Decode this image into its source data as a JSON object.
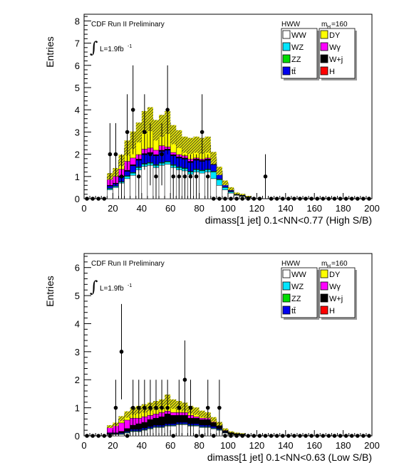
{
  "colors": {
    "WW": "#ffffff",
    "WZ": "#00e5ff",
    "ZZ": "#00dd00",
    "tt": "#0000ee",
    "DY": "#ffff00",
    "Wgamma": "#ff00ff",
    "Wjets": "#000000",
    "H": "#ff0000",
    "uncertainty": "#bbbb00"
  },
  "chart_data": [
    {
      "type": "bar",
      "panel": "top",
      "title": "CDF Run II Preliminary",
      "lumi_label": "L=1.9fb",
      "lumi_sup": "-1",
      "integral_symbol": "∫",
      "legend_title_left": "HWW",
      "legend_title_right": "m",
      "legend_title_right_sub": "H",
      "legend_title_right_value": "=160",
      "legend": [
        {
          "key": "WW",
          "label": "WW"
        },
        {
          "key": "DY",
          "label": "DY"
        },
        {
          "key": "WZ",
          "label": "WZ"
        },
        {
          "key": "Wgamma",
          "label": "Wγ"
        },
        {
          "key": "ZZ",
          "label": "ZZ"
        },
        {
          "key": "Wjets",
          "label": "W+j"
        },
        {
          "key": "tt",
          "label": "tt̄"
        },
        {
          "key": "H",
          "label": "H"
        }
      ],
      "xlabel": "dimass[1 jet] 0.1<NN<0.77 (High S/B)",
      "ylabel": "Entries",
      "xlim": [
        0,
        200
      ],
      "ylim": [
        0,
        8.3
      ],
      "x_ticks": [
        0,
        20,
        40,
        60,
        80,
        100,
        120,
        140,
        160,
        180,
        200
      ],
      "x_tick_labels": [
        "0",
        "20",
        "40",
        "60",
        "80",
        "100",
        "120",
        "140",
        "160",
        "180",
        "200"
      ],
      "y_ticks": [
        0,
        1,
        2,
        3,
        4,
        5,
        6,
        7,
        8
      ],
      "y_tick_labels": [
        "0",
        "1",
        "2",
        "3",
        "4",
        "5",
        "6",
        "7",
        "8"
      ],
      "bin_edges": [
        16,
        20,
        24,
        28,
        32,
        36,
        40,
        44,
        48,
        52,
        56,
        60,
        64,
        68,
        72,
        76,
        80,
        84,
        88,
        92,
        96,
        100,
        104,
        108,
        112,
        116
      ],
      "stack": [
        {
          "key": "WW",
          "values": [
            0.4,
            0.5,
            0.7,
            0.9,
            1.05,
            1.3,
            1.45,
            1.5,
            1.4,
            1.5,
            1.55,
            1.4,
            1.3,
            1.25,
            1.1,
            1.2,
            1.15,
            1.2,
            0.9,
            0.6,
            0.4,
            0.25,
            0.15,
            0.1,
            0.05
          ]
        },
        {
          "key": "WZ",
          "values": [
            0.05,
            0.05,
            0.05,
            0.1,
            0.1,
            0.1,
            0.1,
            0.1,
            0.1,
            0.1,
            0.1,
            0.1,
            0.1,
            0.1,
            0.1,
            0.1,
            0.1,
            0.1,
            0.3,
            0.25,
            0.1,
            0.05,
            0.02,
            0.02,
            0.01
          ]
        },
        {
          "key": "ZZ",
          "values": [
            0.02,
            0.02,
            0.02,
            0.03,
            0.03,
            0.03,
            0.03,
            0.03,
            0.03,
            0.03,
            0.03,
            0.03,
            0.03,
            0.03,
            0.03,
            0.03,
            0.03,
            0.03,
            0.03,
            0.03,
            0.02,
            0.02,
            0.01,
            0.01,
            0.01
          ]
        },
        {
          "key": "tt",
          "values": [
            0.1,
            0.1,
            0.2,
            0.2,
            0.3,
            0.3,
            0.4,
            0.4,
            0.4,
            0.5,
            0.5,
            0.4,
            0.4,
            0.4,
            0.4,
            0.4,
            0.4,
            0.4,
            0.3,
            0.2,
            0.1,
            0.05,
            0.02,
            0.02,
            0.01
          ]
        },
        {
          "key": "Wjets",
          "values": [
            0.03,
            0.03,
            0.05,
            0.05,
            0.05,
            0.05,
            0.05,
            0.05,
            0.05,
            0.05,
            0.05,
            0.05,
            0.05,
            0.05,
            0.05,
            0.05,
            0.05,
            0.05,
            0.05,
            0.05,
            0.02,
            0.02,
            0.01,
            0.01,
            0.01
          ]
        },
        {
          "key": "Wgamma",
          "values": [
            0.3,
            0.3,
            0.3,
            0.4,
            0.3,
            0.2,
            0.2,
            0.2,
            0.2,
            0.2,
            0.1,
            0.1,
            0.1,
            0.1,
            0.1,
            0.05,
            0.05,
            0.05,
            0.05,
            0.02,
            0.02,
            0.01,
            0.01,
            0.01,
            0.01
          ]
        },
        {
          "key": "DY",
          "values": [
            0.1,
            0.2,
            0.4,
            0.6,
            0.8,
            1.0,
            1.2,
            1.3,
            0.9,
            0.9,
            1.1,
            0.8,
            0.7,
            0.5,
            0.6,
            0.6,
            0.6,
            0.6,
            0.2,
            0.1,
            0.05,
            0.05,
            0.02,
            0.02,
            0.01
          ]
        },
        {
          "key": "H",
          "values": [
            0.0,
            0.0,
            0.0,
            0.0,
            0.0,
            0.0,
            0.0,
            0.0,
            0.0,
            0.0,
            0.0,
            0.0,
            0.0,
            0.0,
            0.0,
            0.0,
            0.0,
            0.0,
            0.0,
            0.0,
            0.0,
            0.0,
            0.0,
            0.0,
            0.0
          ]
        }
      ],
      "uncertainty": 0.15,
      "data_points": {
        "x": [
          2,
          6,
          10,
          14,
          18,
          22,
          26,
          30,
          34,
          38,
          42,
          46,
          50,
          54,
          58,
          62,
          66,
          70,
          74,
          78,
          82,
          86,
          90,
          94,
          98,
          102,
          106,
          110,
          114,
          118,
          122,
          126,
          130,
          134,
          138,
          142,
          146,
          150,
          154,
          158,
          162,
          166,
          170,
          174,
          178,
          182,
          186,
          190,
          194,
          198
        ],
        "y": [
          0,
          0,
          0,
          0,
          2,
          2,
          1,
          3,
          4,
          1,
          3,
          2,
          1,
          2,
          4,
          1,
          1,
          1,
          1,
          1,
          3,
          1,
          0,
          0,
          0,
          0,
          0,
          0,
          0,
          0,
          0,
          1,
          0,
          0,
          0,
          0,
          0,
          0,
          0,
          0,
          0,
          0,
          0,
          0,
          0,
          0,
          0,
          0,
          0,
          0
        ],
        "yerr": [
          0,
          0,
          0,
          0,
          1.4,
          1.4,
          1.0,
          1.7,
          2.0,
          1.0,
          1.7,
          1.4,
          1.0,
          1.4,
          2.0,
          1.0,
          1.0,
          1.0,
          1.0,
          1.0,
          1.7,
          1.0,
          0,
          0,
          0,
          0,
          0,
          0,
          0,
          0,
          0,
          1.0,
          0,
          0,
          0,
          0,
          0,
          0,
          0,
          0,
          0,
          0,
          0,
          0,
          0,
          0,
          0,
          0,
          0,
          0
        ]
      }
    },
    {
      "type": "bar",
      "panel": "bottom",
      "title": "CDF Run II Preliminary",
      "lumi_label": "L=1.9fb",
      "lumi_sup": "-1",
      "integral_symbol": "∫",
      "legend_title_left": "HWW",
      "legend_title_right": "m",
      "legend_title_right_sub": "H",
      "legend_title_right_value": "=160",
      "legend": [
        {
          "key": "WW",
          "label": "WW"
        },
        {
          "key": "DY",
          "label": "DY"
        },
        {
          "key": "WZ",
          "label": "WZ"
        },
        {
          "key": "Wgamma",
          "label": "Wγ"
        },
        {
          "key": "ZZ",
          "label": "ZZ"
        },
        {
          "key": "Wjets",
          "label": "W+j"
        },
        {
          "key": "tt",
          "label": "tt̄"
        },
        {
          "key": "H",
          "label": "H"
        }
      ],
      "xlabel": "dimass[1 jet] 0.1<NN<0.63 (Low S/B)",
      "ylabel": "Entries",
      "xlim": [
        0,
        200
      ],
      "ylim": [
        0,
        6.5
      ],
      "x_ticks": [
        0,
        20,
        40,
        60,
        80,
        100,
        120,
        140,
        160,
        180,
        200
      ],
      "x_tick_labels": [
        "0",
        "20",
        "40",
        "60",
        "80",
        "100",
        "120",
        "140",
        "160",
        "180",
        "200"
      ],
      "y_ticks": [
        0,
        1,
        2,
        3,
        4,
        5,
        6
      ],
      "y_tick_labels": [
        "0",
        "1",
        "2",
        "3",
        "4",
        "5",
        "6"
      ],
      "bin_edges": [
        16,
        20,
        24,
        28,
        32,
        36,
        40,
        44,
        48,
        52,
        56,
        60,
        64,
        68,
        72,
        76,
        80,
        84,
        88,
        92,
        96,
        100,
        104,
        108,
        112
      ],
      "stack": [
        {
          "key": "WW",
          "values": [
            0.05,
            0.05,
            0.05,
            0.1,
            0.15,
            0.15,
            0.2,
            0.25,
            0.3,
            0.3,
            0.35,
            0.35,
            0.4,
            0.4,
            0.35,
            0.35,
            0.3,
            0.3,
            0.25,
            0.2,
            0.1,
            0.05,
            0.03,
            0.02
          ]
        },
        {
          "key": "WZ",
          "values": [
            0.01,
            0.01,
            0.02,
            0.02,
            0.02,
            0.02,
            0.02,
            0.02,
            0.02,
            0.02,
            0.02,
            0.02,
            0.02,
            0.02,
            0.02,
            0.02,
            0.02,
            0.02,
            0.02,
            0.02,
            0.01,
            0.01,
            0.01,
            0.01
          ]
        },
        {
          "key": "ZZ",
          "values": [
            0.01,
            0.01,
            0.01,
            0.01,
            0.01,
            0.01,
            0.01,
            0.01,
            0.01,
            0.01,
            0.01,
            0.01,
            0.01,
            0.01,
            0.01,
            0.01,
            0.01,
            0.01,
            0.01,
            0.01,
            0.01,
            0.01,
            0.01,
            0.01
          ]
        },
        {
          "key": "tt",
          "values": [
            0.02,
            0.02,
            0.03,
            0.03,
            0.05,
            0.05,
            0.05,
            0.05,
            0.05,
            0.05,
            0.05,
            0.05,
            0.05,
            0.05,
            0.05,
            0.05,
            0.05,
            0.05,
            0.05,
            0.03,
            0.02,
            0.01,
            0.01,
            0.01
          ]
        },
        {
          "key": "Wjets",
          "values": [
            0.02,
            0.02,
            0.05,
            0.1,
            0.15,
            0.2,
            0.2,
            0.25,
            0.25,
            0.3,
            0.35,
            0.3,
            0.25,
            0.25,
            0.2,
            0.2,
            0.2,
            0.2,
            0.15,
            0.1,
            0.05,
            0.03,
            0.02,
            0.01
          ]
        },
        {
          "key": "Wgamma",
          "values": [
            0.2,
            0.25,
            0.3,
            0.3,
            0.25,
            0.2,
            0.2,
            0.15,
            0.15,
            0.15,
            0.1,
            0.1,
            0.1,
            0.1,
            0.1,
            0.05,
            0.05,
            0.05,
            0.05,
            0.02,
            0.02,
            0.01,
            0.01,
            0.01
          ]
        },
        {
          "key": "DY",
          "values": [
            0.02,
            0.05,
            0.15,
            0.2,
            0.25,
            0.3,
            0.3,
            0.3,
            0.3,
            0.3,
            0.4,
            0.3,
            0.25,
            0.2,
            0.2,
            0.2,
            0.15,
            0.1,
            0.05,
            0.05,
            0.02,
            0.02,
            0.01,
            0.01
          ]
        },
        {
          "key": "H",
          "values": [
            0,
            0,
            0,
            0,
            0,
            0,
            0,
            0,
            0,
            0,
            0,
            0,
            0,
            0,
            0,
            0,
            0,
            0,
            0,
            0,
            0,
            0,
            0,
            0
          ]
        }
      ],
      "uncertainty": 0.15,
      "data_points": {
        "x": [
          2,
          6,
          10,
          14,
          18,
          22,
          26,
          30,
          34,
          38,
          42,
          46,
          50,
          54,
          58,
          62,
          66,
          70,
          74,
          78,
          82,
          86,
          90,
          94,
          98,
          102,
          106,
          110,
          114,
          118,
          122,
          126,
          130,
          134,
          138,
          142,
          146,
          150,
          154,
          158,
          162,
          166,
          170,
          174,
          178,
          182,
          186,
          190,
          194,
          198
        ],
        "y": [
          0,
          0,
          0,
          0,
          0,
          1,
          3,
          0,
          1,
          1,
          1,
          1,
          1,
          1,
          1,
          0,
          1,
          2,
          1,
          0,
          0,
          1,
          0,
          1,
          0,
          0,
          0,
          0,
          0,
          0,
          0,
          0,
          0,
          0,
          0,
          0,
          0,
          0,
          0,
          0,
          0,
          0,
          0,
          0,
          0,
          0,
          0,
          0,
          0,
          0
        ],
        "yerr": [
          0,
          0,
          0,
          0,
          0,
          1.0,
          1.7,
          0,
          1.0,
          1.0,
          1.0,
          1.0,
          1.0,
          1.0,
          1.0,
          0,
          1.0,
          1.4,
          1.0,
          0,
          0,
          1.0,
          0,
          1.0,
          0,
          0,
          0,
          0,
          0,
          0,
          0,
          0,
          0,
          0,
          0,
          0,
          0,
          0,
          0,
          0,
          0,
          0,
          0,
          0,
          0,
          0,
          0,
          0,
          0,
          0
        ]
      }
    }
  ]
}
